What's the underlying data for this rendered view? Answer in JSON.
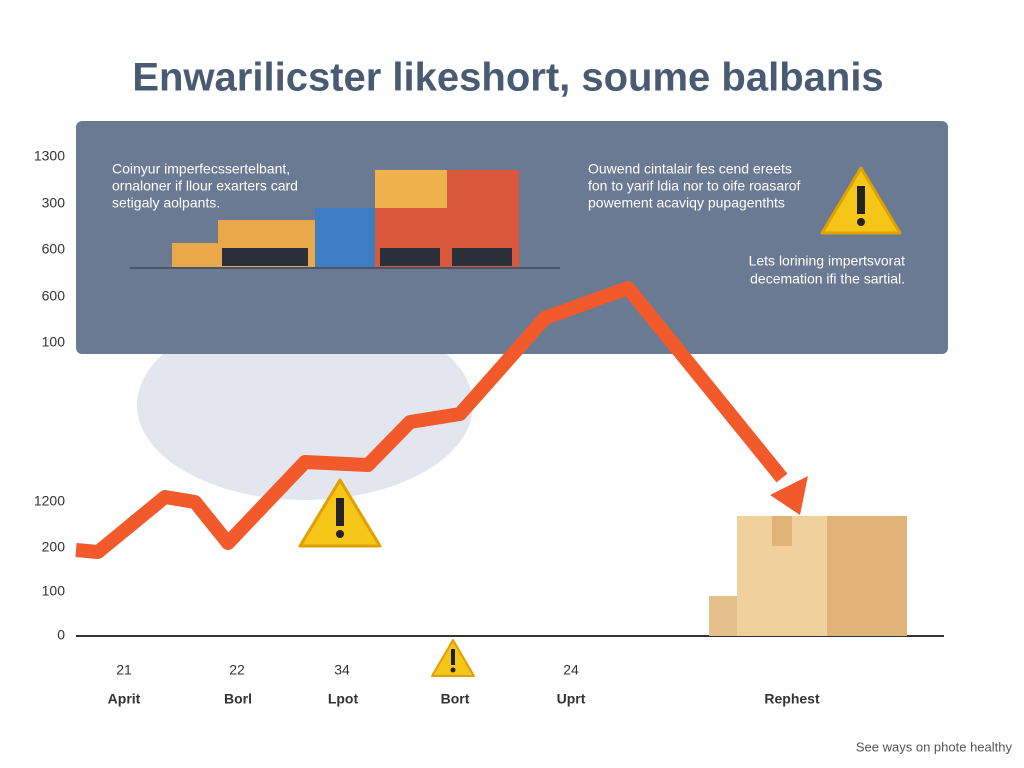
{
  "title": "Enwarilicster likeshort, soume balbanis",
  "panel": {
    "left_note": [
      "Coinyur imperfecssertelbant,",
      "ornaloner if llour exarters card",
      "setigaly aolpants."
    ],
    "right_note": [
      "Ouwend cintalair fes cend ereets",
      "fon to yarif ldia nor to oife roasarof",
      "powement acaviqy pupagenthts"
    ],
    "right_note_2": [
      "Lets lorining impertsvorat",
      "decemation ifi the sartial."
    ]
  },
  "y_labels_top": [
    "1300",
    "300",
    "600",
    "600",
    "100"
  ],
  "y_labels_bottom": [
    "1200",
    "200",
    "100",
    "0"
  ],
  "x_numbers": [
    "21",
    "22",
    "34",
    "24"
  ],
  "x_labels": [
    "Aprit",
    "Borl",
    "Lpot",
    "Bort",
    "Uprt",
    "Rephest"
  ],
  "footer": "See ways on phote healthy"
}
